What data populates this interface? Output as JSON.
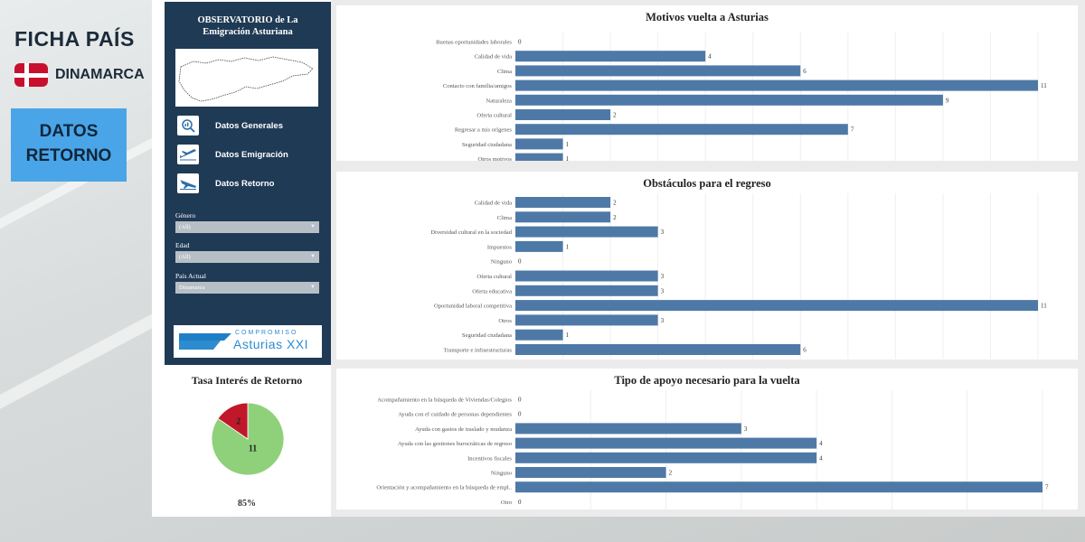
{
  "header": {
    "title": "FICHA PAÍS",
    "country": "DINAMARCA",
    "section_button": "DATOS RETORNO"
  },
  "sidebar": {
    "title_line1": "OBSERVATORIO de La",
    "title_line2": "Emigración Asturiana",
    "nav": [
      {
        "label": "Datos Generales",
        "icon": "search-chart-icon"
      },
      {
        "label": "Datos Emigración",
        "icon": "plane-takeoff-icon"
      },
      {
        "label": "Datos Retorno",
        "icon": "plane-landing-icon"
      }
    ],
    "filters": [
      {
        "label": "Género",
        "value": "(All)"
      },
      {
        "label": "Edad",
        "value": "(All)"
      },
      {
        "label": "País Actual",
        "value": "Dinamarca"
      }
    ],
    "logo": {
      "top": "COMPROMISO",
      "bottom": "Asturias XXI"
    }
  },
  "colors": {
    "bar": "#4e79a7",
    "pie_yes": "#8fd17a",
    "pie_no": "#c0172a",
    "sidebar": "#1f3a55",
    "accent_button": "#4aa5e8"
  },
  "chart_data": [
    {
      "type": "bar",
      "title": "Motivos vuelta a Asturias",
      "categories": [
        "Buenas oportunidades laborales",
        "Calidad de vida",
        "Clima",
        "Contacto con familia/amigos",
        "Naturaleza",
        "Oferta cultural",
        "Regresar a mis orígenes",
        "Seguridad ciudadana",
        "Otros motivos"
      ],
      "values": [
        0,
        4,
        6,
        11,
        9,
        2,
        7,
        1,
        1
      ],
      "xlim": [
        0,
        11
      ]
    },
    {
      "type": "bar",
      "title": "Obstáculos para el regreso",
      "categories": [
        "Calidad de vida",
        "Clima",
        "Diversidad cultural en la sociedad",
        "Impuestos",
        "Ninguno",
        "Oferta cultural",
        "Oferta educativa",
        "Oportunidad laboral competitiva",
        "Otros",
        "Seguridad ciudadana",
        "Transporte e infraestructuras"
      ],
      "values": [
        2,
        2,
        3,
        1,
        0,
        3,
        3,
        11,
        3,
        1,
        6
      ],
      "xlim": [
        0,
        11
      ]
    },
    {
      "type": "bar",
      "title": "Tipo de apoyo necesario para la vuelta",
      "categories": [
        "Acompañamiento en la búsqueda de Viviendas/Colegios",
        "Ayuda con el cuidado de personas dependientes",
        "Ayuda con gastos de traslado y mudanza",
        "Ayuda con las gestiones burocráticas de regreso",
        "Incentivos fiscales",
        "Ninguno",
        "Orientación y acompañamiento en la búsqueda de empl..",
        "Otro"
      ],
      "values": [
        0,
        0,
        3,
        4,
        4,
        2,
        7,
        0
      ],
      "xlim": [
        0,
        7
      ]
    },
    {
      "type": "pie",
      "title": "Tasa Interés de Retorno",
      "slices": [
        {
          "value": 11,
          "color": "#8fd17a"
        },
        {
          "value": 2,
          "color": "#c0172a"
        }
      ],
      "summary": "85%"
    }
  ]
}
